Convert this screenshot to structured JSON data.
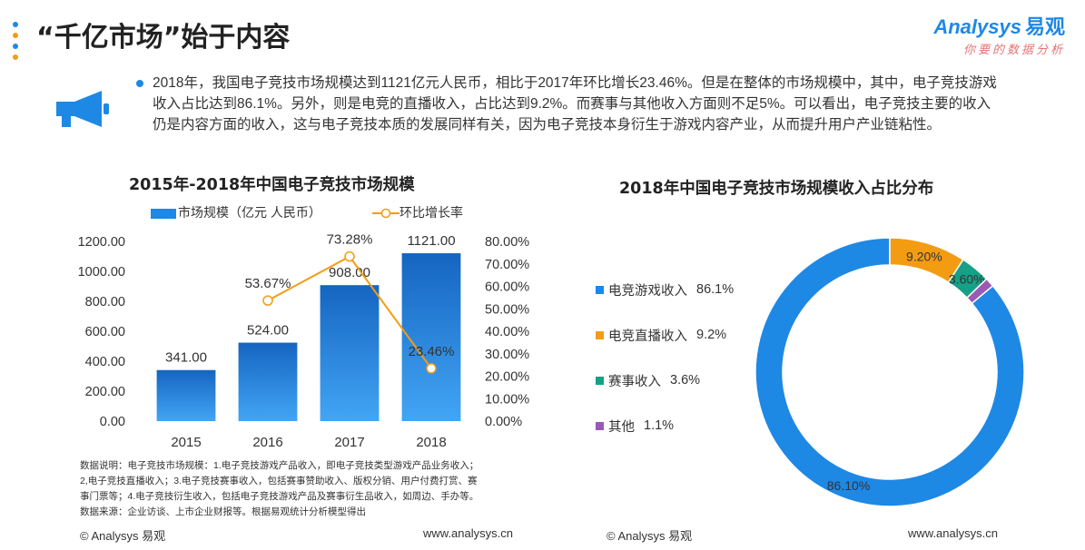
{
  "header": {
    "title": "“千亿市场”始于内容",
    "brand_name": "Analysys",
    "brand_cn": "易观",
    "brand_slogan": "你要的数据分析"
  },
  "summary": {
    "text": "2018年，我国电子竞技市场规模达到1121亿元人民币，相比于2017年环比增长23.46%。但是在整体的市场规模中，其中，电子竞技游戏收入占比达到86.1%。另外，则是电竞的直播收入，占比达到9.2%。而赛事与其他收入方面则不足5%。可以看出，电子竞技主要的收入仍是内容方面的收入，这与电子竞技本质的发展同样有关，因为电子竞技本身衍生于游戏内容产业，从而提升用户产业链粘性。"
  },
  "chart_data": [
    {
      "type": "bar",
      "title": "2015年-2018年中国电子竞技市场规模",
      "categories": [
        "2015",
        "2016",
        "2017",
        "2018"
      ],
      "series": [
        {
          "name": "市场规模（亿元 人民币）",
          "kind": "bar",
          "axis": "left",
          "values": [
            341.0,
            524.0,
            908.0,
            1121.0
          ],
          "labels": [
            "341.00",
            "524.00",
            "908.00",
            "1121.00"
          ]
        },
        {
          "name": "环比增长率",
          "kind": "line",
          "axis": "right",
          "values": [
            null,
            53.67,
            73.28,
            23.46
          ],
          "labels": [
            "",
            "53.67%",
            "73.28%",
            "23.46%"
          ]
        }
      ],
      "ylim": [
        0,
        1200
      ],
      "yticks": [
        "0.00",
        "200.00",
        "400.00",
        "600.00",
        "800.00",
        "1000.00",
        "1200.00"
      ],
      "y2lim": [
        0,
        80
      ],
      "y2ticks": [
        "0.00%",
        "10.00%",
        "20.00%",
        "30.00%",
        "40.00%",
        "50.00%",
        "60.00%",
        "70.00%",
        "80.00%"
      ],
      "legend": [
        "市场规模（亿元 人民币）",
        "环比增长率"
      ]
    },
    {
      "type": "pie",
      "title": "2018年中国电子竞技市场规模收入占比分布",
      "slices": [
        {
          "name": "电竞游戏收入",
          "value": 86.1,
          "legend_pct": "86.1%",
          "label": "86.10%",
          "color": "#1e88e5"
        },
        {
          "name": "电竞直播收入",
          "value": 9.2,
          "legend_pct": "9.2%",
          "label": "9.20%",
          "color": "#f39c12"
        },
        {
          "name": "赛事收入",
          "value": 3.6,
          "legend_pct": "3.6%",
          "label": "3.60%",
          "color": "#16a085"
        },
        {
          "name": "其他",
          "value": 1.1,
          "legend_pct": "1.1%",
          "label": "",
          "color": "#9b59b6"
        }
      ]
    }
  ],
  "notes": {
    "line1": "数据说明：电子竞技市场规模：1.电子竞技游戏产品收入，即电子竞技类型游戏产品业务收入；",
    "line2": "2,电子竞技直播收入；3.电子竞技赛事收入，包括赛事赞助收入、版权分销、用户付费打赏、赛",
    "line3": "事门票等；4.电子竞技衍生收入，包括电子竞技游戏产品及赛事衍生品收入，如周边、手办等。",
    "line4": "数据来源：企业访谈、上市企业财报等。根据易观统计分析模型得出"
  },
  "footer": {
    "copyright": "© Analysys 易观",
    "url": "www.analysys.cn"
  },
  "colors": {
    "bar": "#1e88e5",
    "line": "#f39c12",
    "dots": [
      "#1e88e5",
      "#f39c12",
      "#1e88e5",
      "#f39c12"
    ]
  }
}
